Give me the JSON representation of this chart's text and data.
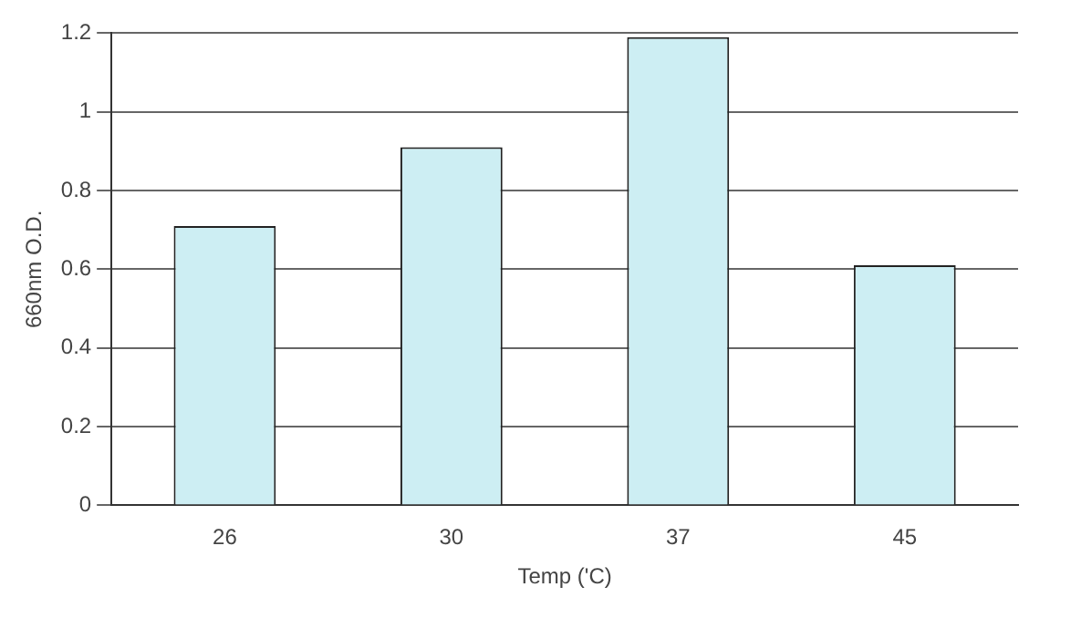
{
  "chart_data": {
    "type": "bar",
    "xlabel": "Temp ('C)",
    "ylabel": "660nm O.D.",
    "categories": [
      "26",
      "30",
      "37",
      "45"
    ],
    "values": [
      0.71,
      0.91,
      1.19,
      0.61
    ],
    "color": "#cdeef3",
    "ylim": [
      0,
      1.2
    ],
    "yticks": [
      0,
      0.2,
      0.4,
      0.6,
      0.8,
      1,
      1.2
    ],
    "grid": "y",
    "legend": false
  }
}
